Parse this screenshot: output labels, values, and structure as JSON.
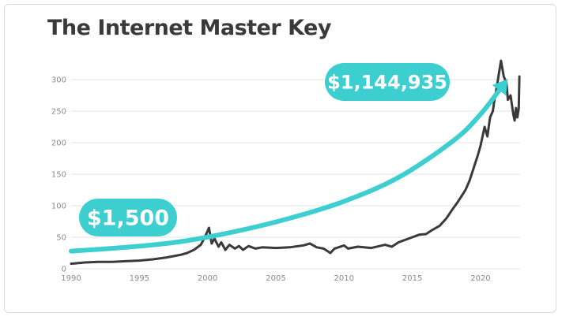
{
  "page": {
    "title": "The Internet Master Key"
  },
  "colors": {
    "line": "#3a3a3a",
    "accent": "#3dcfd0",
    "grid": "#e3e3e3",
    "tick": "#8a8a8a",
    "title": "#3a3a3a"
  },
  "chart_data": {
    "type": "line",
    "title": "The Internet Master Key",
    "xlabel": "",
    "ylabel": "",
    "xlim": [
      1990,
      2022.9
    ],
    "ylim": [
      0,
      300
    ],
    "x_ticks": [
      1990,
      1995,
      2000,
      2005,
      2010,
      2015,
      2020
    ],
    "y_ticks": [
      0,
      50,
      100,
      150,
      200,
      250,
      300
    ],
    "grid": true,
    "series": [
      {
        "name": "",
        "x": [
          1990,
          1991,
          1992,
          1993,
          1994,
          1995,
          1996,
          1997,
          1998,
          1998.5,
          1999,
          1999.5,
          1999.8,
          2000.1,
          2000.3,
          2000.5,
          2000.8,
          2001,
          2001.3,
          2001.6,
          2002,
          2002.3,
          2002.6,
          2003,
          2003.5,
          2004,
          2005,
          2006,
          2007,
          2007.5,
          2008,
          2008.5,
          2009,
          2009.3,
          2010,
          2010.3,
          2011,
          2012,
          2013,
          2013.5,
          2014,
          2015,
          2015.5,
          2016,
          2016.5,
          2017,
          2017.5,
          2018,
          2018.3,
          2018.6,
          2018.9,
          2019.2,
          2019.5,
          2019.8,
          2020,
          2020.3,
          2020.5,
          2020.7,
          2020.9,
          2021,
          2021.2,
          2021.5,
          2021.7,
          2021.9,
          2022,
          2022.2,
          2022.4,
          2022.5,
          2022.6,
          2022.7,
          2022.8,
          2022.85
        ],
        "y": [
          8,
          10,
          11,
          11,
          12,
          13,
          15,
          18,
          22,
          25,
          30,
          38,
          50,
          65,
          40,
          48,
          35,
          42,
          30,
          38,
          32,
          36,
          30,
          36,
          32,
          34,
          33,
          34,
          37,
          40,
          34,
          32,
          25,
          32,
          37,
          32,
          35,
          33,
          38,
          35,
          42,
          50,
          54,
          55,
          62,
          68,
          80,
          96,
          105,
          115,
          125,
          140,
          160,
          180,
          195,
          225,
          210,
          240,
          250,
          265,
          290,
          330,
          305,
          295,
          268,
          275,
          245,
          235,
          255,
          240,
          255,
          305
        ]
      },
      {
        "name": "",
        "x": [
          1990,
          1994,
          1998,
          2002,
          2006,
          2010,
          2014,
          2018,
          2020,
          2021.5
        ],
        "y": [
          28,
          34,
          43,
          59,
          80,
          107,
          145,
          203,
          245,
          287
        ]
      }
    ],
    "annotations": [
      {
        "text": "$1,500"
      },
      {
        "text": "$1,144,935"
      }
    ]
  }
}
